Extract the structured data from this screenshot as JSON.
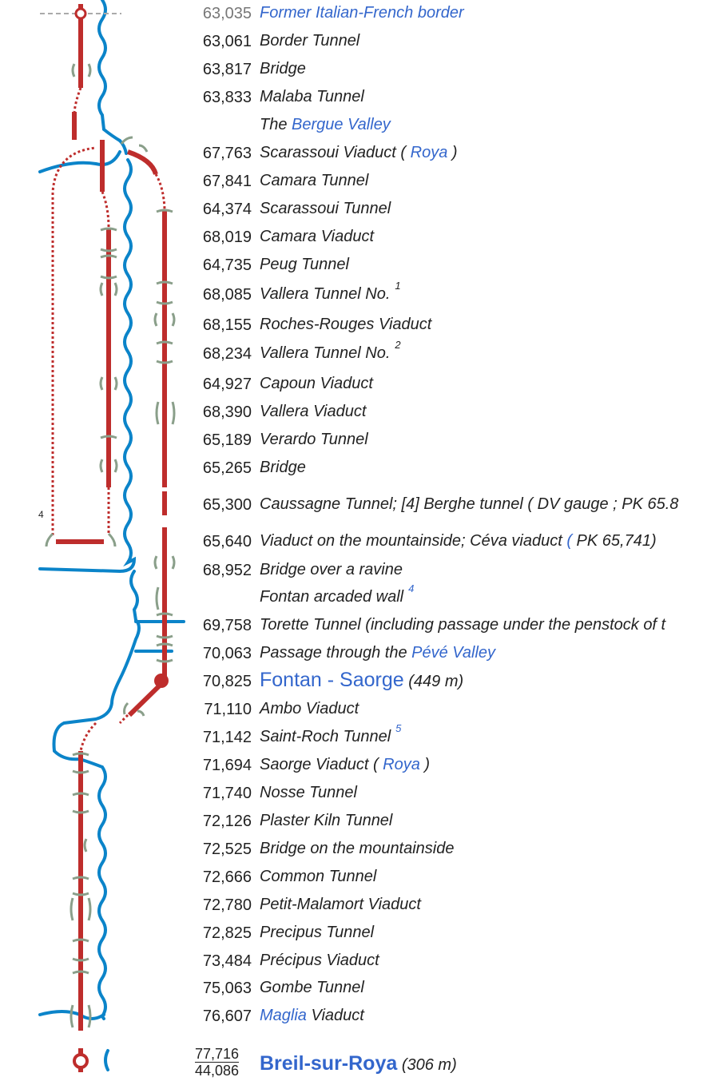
{
  "rows": [
    {
      "km": "63,035",
      "km_gray": true,
      "parts": [
        {
          "t": "Former Italian-French border",
          "link": true
        }
      ]
    },
    {
      "km": "63,061",
      "parts": [
        {
          "t": "Border Tunnel"
        }
      ]
    },
    {
      "km": "63,817",
      "parts": [
        {
          "t": "Bridge"
        }
      ]
    },
    {
      "km": "63,833",
      "parts": [
        {
          "t": "Malaba Tunnel"
        }
      ]
    },
    {
      "km": "",
      "parts": [
        {
          "t": "The "
        },
        {
          "t": "Bergue Valley",
          "link": true
        }
      ]
    },
    {
      "km": "67,763",
      "parts": [
        {
          "t": "Scarassoui Viaduct ( "
        },
        {
          "t": "Roya",
          "link": true
        },
        {
          "t": " )"
        }
      ]
    },
    {
      "km": "67,841",
      "parts": [
        {
          "t": "Camara Tunnel"
        }
      ]
    },
    {
      "km": "64,374",
      "parts": [
        {
          "t": "Scarassoui Tunnel"
        }
      ]
    },
    {
      "km": "68,019",
      "parts": [
        {
          "t": "Camara Viaduct"
        }
      ]
    },
    {
      "km": "64,735",
      "parts": [
        {
          "t": "Peug Tunnel"
        }
      ]
    },
    {
      "km": "68,085",
      "parts": [
        {
          "t": "Vallera  Tunnel No."
        }
      ],
      "sup": "1"
    },
    {
      "km": "68,155",
      "parts": [
        {
          "t": "Roches-Rouges Viaduct"
        }
      ]
    },
    {
      "km": "68,234",
      "parts": [
        {
          "t": "Vallera  Tunnel No."
        }
      ],
      "sup": "2"
    },
    {
      "km": "64,927",
      "parts": [
        {
          "t": "Capoun Viaduct"
        }
      ]
    },
    {
      "km": "68,390",
      "parts": [
        {
          "t": "Vallera Viaduct"
        }
      ]
    },
    {
      "km": "65,189",
      "parts": [
        {
          "t": "Verardo Tunnel"
        }
      ]
    },
    {
      "km": "65,265",
      "parts": [
        {
          "t": "Bridge"
        }
      ]
    },
    {
      "km": "65,300",
      "parts": [
        {
          "t": "Caussagne Tunnel; [4] Berghe tunnel ( DV gauge  ; PK 65.8"
        }
      ]
    },
    {
      "km": "65,640",
      "parts": [
        {
          "t": "Viaduct on the mountainside; Céva viaduct "
        },
        {
          "t": "(",
          "link": true
        },
        {
          "t": " PK 65,741)"
        }
      ]
    },
    {
      "km": "68,952",
      "parts": [
        {
          "t": "Bridge over a ravine"
        }
      ]
    },
    {
      "km": "",
      "parts": [
        {
          "t": "Fontan arcaded wall"
        }
      ],
      "sup": "4",
      "sup_link": true
    },
    {
      "km": "69,758",
      "parts": [
        {
          "t": "Torette Tunnel (including passage under the penstock of t"
        }
      ]
    },
    {
      "km": "70,063",
      "parts": [
        {
          "t": "Passage through the "
        },
        {
          "t": "Pévé Valley",
          "link": true
        }
      ]
    },
    {
      "km": "70,825",
      "station": true,
      "name": "Fontan - Saorge",
      "elev": "(449 m)"
    },
    {
      "km": "71,110",
      "parts": [
        {
          "t": "Ambo Viaduct"
        }
      ]
    },
    {
      "km": "71,142",
      "parts": [
        {
          "t": "Saint-Roch Tunnel"
        }
      ],
      "sup": "5",
      "sup_link": true
    },
    {
      "km": "71,694",
      "parts": [
        {
          "t": "Saorge Viaduct ( "
        },
        {
          "t": "Roya",
          "link": true
        },
        {
          "t": " )"
        }
      ]
    },
    {
      "km": "71,740",
      "parts": [
        {
          "t": "Nosse Tunnel"
        }
      ]
    },
    {
      "km": "72,126",
      "parts": [
        {
          "t": "Plaster Kiln Tunnel"
        }
      ]
    },
    {
      "km": "72,525",
      "parts": [
        {
          "t": "Bridge on the mountainside"
        }
      ]
    },
    {
      "km": "72,666",
      "parts": [
        {
          "t": "Common Tunnel"
        }
      ]
    },
    {
      "km": "72,780",
      "parts": [
        {
          "t": "Petit-Malamort Viaduct"
        }
      ]
    },
    {
      "km": "72,825",
      "parts": [
        {
          "t": "Precipus Tunnel"
        }
      ]
    },
    {
      "km": "73,484",
      "parts": [
        {
          "t": "Précipus Viaduct"
        }
      ]
    },
    {
      "km": "75,063",
      "parts": [
        {
          "t": "Gombe Tunnel"
        }
      ]
    },
    {
      "km": "76,607",
      "parts": [
        {
          "t": "Maglia",
          "link": true
        },
        {
          "t": " Viaduct"
        }
      ]
    }
  ],
  "terminal": {
    "km_top": "77,716",
    "km_bottom": "44,086",
    "name": "Breil-sur-Roya",
    "elev": "(306 m)"
  },
  "diagram_note": "4",
  "colors": {
    "track": "#be2d2c",
    "river": "#0b84c9",
    "bridge": "#8a9f8a",
    "link": "#3366cc",
    "border": "#aaaaaa"
  }
}
